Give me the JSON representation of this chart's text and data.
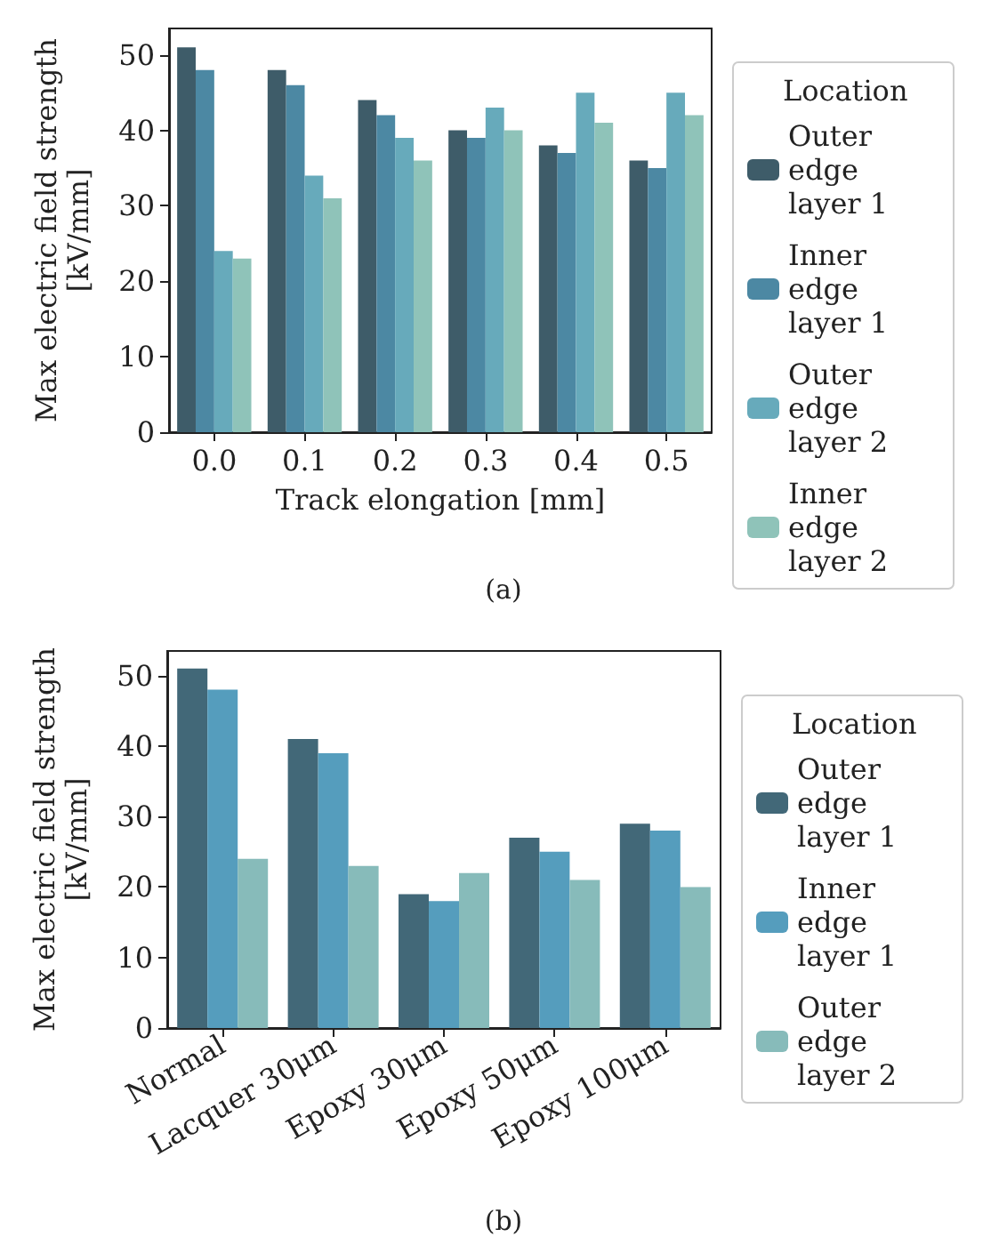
{
  "chart_data": [
    {
      "type": "bar",
      "xlabel": "Track elongation [mm]",
      "ylabel": "Max electric field strength\n[kV/mm]",
      "legend_title": "Location",
      "legend": "right",
      "grid": false,
      "categories": [
        "0.0",
        "0.1",
        "0.2",
        "0.3",
        "0.4",
        "0.5"
      ],
      "ylim": [
        0,
        53.5
      ],
      "yticks": [
        0,
        10,
        20,
        30,
        40,
        50
      ],
      "annotations": [
        "(a)"
      ],
      "series": [
        {
          "name": "Outer edge layer 1",
          "color": "#3e5c69",
          "values": [
            51,
            48,
            44,
            40,
            38,
            36
          ]
        },
        {
          "name": "Inner edge layer 1",
          "color": "#4c88a3",
          "values": [
            48,
            46,
            42,
            39,
            37,
            35
          ]
        },
        {
          "name": "Outer edge layer 2",
          "color": "#67aabb",
          "values": [
            24,
            34,
            39,
            43,
            45,
            45
          ]
        },
        {
          "name": "Inner edge layer 2",
          "color": "#8fc3b9",
          "values": [
            23,
            31,
            36,
            40,
            41,
            42
          ]
        }
      ]
    },
    {
      "type": "bar",
      "ylabel": "Max electric field strength\n[kV/mm]",
      "legend_title": "Location",
      "legend": "right",
      "grid": false,
      "categories": [
        "Normal",
        "Lacquer 30μm",
        "Epoxy 30μm",
        "Epoxy 50μm",
        "Epoxy 100μm"
      ],
      "ylim": [
        0,
        53.5
      ],
      "yticks": [
        0,
        10,
        20,
        30,
        40,
        50
      ],
      "annotations": [
        "(b)"
      ],
      "series": [
        {
          "name": "Outer edge layer 1",
          "color": "#426878",
          "values": [
            51,
            41,
            19,
            27,
            29
          ]
        },
        {
          "name": "Inner edge layer 1",
          "color": "#559dbd",
          "values": [
            48,
            39,
            18,
            25,
            28
          ]
        },
        {
          "name": "Outer edge layer 2",
          "color": "#87bbba",
          "values": [
            24,
            23,
            22,
            21,
            20
          ]
        }
      ]
    }
  ]
}
